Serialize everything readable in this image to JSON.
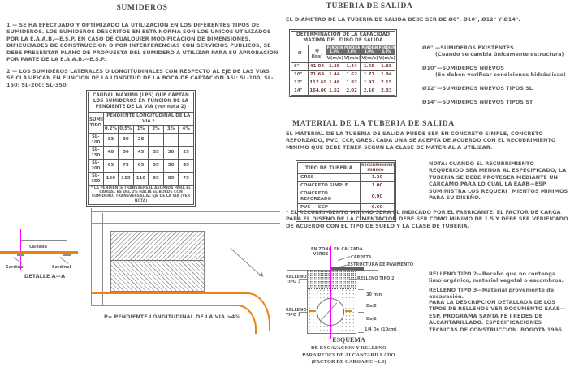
{
  "colors": {
    "accent_orange": "#e8830f",
    "accent_magenta": "#ff00ff",
    "line_gray": "#8a8a8a",
    "text_gray": "#5c5c5c",
    "value_maroon": "#7a4343"
  },
  "sumideros": {
    "title": "SUMIDEROS",
    "para1": "1 — SE HA EFECTUADO Y OPTIMIZADO LA UTILIZACION EN LOS DIFERENTES TIPOS DE SUMIDEROS. LOS SUMIDEROS DESCRITOS EN ESTA NORMA SON LOS UNICOS UTILIZADOS POR LA E.A.A.B.—E.S.P. EN CASO DE CUALQUIER MODIFICACION DE DIMENSIONES, DIFICULTADES DE CONSTRUCCION O POR INTERFERENCIAS CON SERVICIOS PUBLICOS, SE DEBE PRESENTAR PLANO DE PROPUESTA DEL SUMIDERO A UTILIZAR PARA SU APROBACION POR PARTE DE LA E.A.A.B.—E.S.P.",
    "para2": "2 — LOS SUMIDEROS LATERALES O LONGITUDINALES CON RESPECTO AL EJE DE LAS VIAS SE CLASIFICAN EN FUNCION DE LA LONGITUD DE LA BOCA DE CAPTACION ASI: SL-100; SL-150; SL-200; SL-350.",
    "caudal_table": {
      "title": "CAUDAL MAXIMO (LPS) QUE CAPTAN LOS SUMIDEROS EN FUNCION DE LA PENDIENTE DE LA VIA (ver nota 2)",
      "col_tipo": "SUMIDERO TIPO",
      "group_header": "PENDIENTE LONGITUDINAL DE LA VIA *",
      "slopes": [
        "0.2%",
        "0.5%",
        "1%",
        "2%",
        "3%",
        "4%"
      ],
      "rows": [
        [
          "SL-100",
          "33",
          "30",
          "28",
          "—",
          "—",
          "—"
        ],
        [
          "SL-150",
          "48",
          "50",
          "45",
          "35",
          "30",
          "25"
        ],
        [
          "SL-200",
          "65",
          "75",
          "65",
          "55",
          "50",
          "45"
        ],
        [
          "SL-350",
          "130",
          "115",
          "110",
          "95",
          "85",
          "75"
        ]
      ],
      "footnote": "* LA PENDIENTE TRANSVERSAL ASUMIDA PARA EL CAUDAL ES DEL 2% HACIA EL BORDE CON SUMIDERO, TRANSVERSAL AL EJE DE LA VIA (VER NOTA)"
    }
  },
  "tuberia": {
    "title": "TUBERIA DE SALIDA",
    "intro": "EL DIAMETRO DE LA TUBERIA DE SALIDA DEBE SER DE Ø6\", Ø10\", Ø12\" Y Ø14\".",
    "capacity_table": {
      "title": "DETERMINACION DE LA CAPACIDAD MAXIMA DEL TUBO DE SALIDA",
      "col_diameter": "Ø",
      "col_q": "Q (lps)",
      "slope_headers": [
        "PENDIENTE 1.0%",
        "PENDIENTE 2.0%",
        "PENDIENTE 3.0%",
        "PENDIENTE 4.0%"
      ],
      "v_unit": "V(m/s)",
      "rows": [
        [
          "6\"",
          "41.04",
          "1.35",
          "1.44",
          "1.65",
          "1.88"
        ],
        [
          "10\"",
          "71.69",
          "1.44",
          "1.62",
          "1.77",
          "1.94"
        ],
        [
          "12\"",
          "112.69",
          "1.46",
          "1.82",
          "1.97",
          "2.15"
        ],
        [
          "14\"",
          "164.00",
          "1.52",
          "2.02",
          "2.16",
          "2.33"
        ]
      ]
    },
    "diam_notes": [
      {
        "line": "Ø6\"  —SUMIDEROS EXISTENTES",
        "sub": "(Cuando se cambia únicamente estructura)"
      },
      {
        "line": "Ø10\"—SUMIDEROS NUEVOS",
        "sub": "(Se deben verificar condiciones hidráulicas)"
      },
      {
        "line": "Ø12\"—SUMIDEROS NUEVOS TIPOS SL",
        "sub": ""
      },
      {
        "line": "Ø14\"—SUMIDEROS NUEVOS TIPOS ST",
        "sub": ""
      }
    ]
  },
  "material": {
    "title": "MATERIAL DE LA TUBERIA DE SALIDA",
    "para": "EL MATERIAL DE LA TUBERIA DE SALIDA PUEDE SER EN CONCRETO SIMPLE, CONCRETO REFORZADO, PVC, CCP, GRES. CADA UNA SE ACEPTA DE ACUERDO CON EL RECUBRIMIENTO MINIMO QUE DEBE TENER SEGUN LA CLASE DE MATERIAL A UTILIZAR.",
    "tipo_table": {
      "col1": "TIPO DE TUBERIA",
      "col2": "RECUBRIMIENTO MINIMO *",
      "rows": [
        [
          "GRES",
          "1.20"
        ],
        [
          "CONCRETO SIMPLE",
          "1.00"
        ],
        [
          "CONCRETO REFORZADO",
          "0.90"
        ],
        [
          "PVC — CCP",
          "0.60"
        ],
        [
          " ",
          " "
        ]
      ]
    },
    "nota": "NOTA: CUANDO EL RECUBRIMIENTO REQUERIDO SEA MENOR AL ESPECIFICADO, LA TUBERIA SE DEBE PROTEGER MEDIANTE UN CARCAMO PARA LO CUAL LA EAAB—ESP. SUMINISTRA LOS REQUERI_ MIENTOS MINIMOS PARA SU DISEÑO.",
    "footnote": "* EL RECUBRIMIENTO MINIMO SERA EL INDICADO POR EL FABRICANTE. EL FACTOR DE CARGA PARA EL DISEÑO DE LA CIMENTACION DEBE SER COMO MINIMO DE 1.5 Y DEBE SER VERIFICADO DE ACUERDO CON EL TIPO DE SUELO Y LA CLASE DE TUBERIA."
  },
  "esquema": {
    "label_zona_1": "EN ZONA",
    "label_zona_2": "VERDE",
    "label_calzada": "EN CALZADA",
    "label_carpeta": "CARPETA",
    "label_estructura": "ESTRUCTURA DE PAVIMENTO",
    "relleno3_l1": "RELLENO",
    "relleno3_l2": "TIPO 3",
    "relleno2": "RELLENO TIPO 2",
    "relleno1_l1": "RELLENO",
    "relleno1_l2": "TIPO 1",
    "dim_30min": "30 min",
    "dim_de2_a": "De/2",
    "dim_de2_b": "De/2",
    "dim_cuarto": "1/4 De (10cm)",
    "caption": [
      "ESQUEMA",
      "DE EXCAVACION Y RELLENO",
      "PARA REDES DE ALCANTARILLADO",
      "(FACTOR DE CARGA F.C.=1.5)"
    ]
  },
  "relleno_notes": {
    "n1": "RELLENO TIPO 2—Recebo que no contenga limo orgánico, material vegetal o escombros.",
    "n2": "RELLENO TIPO 3—Material proveniente de excavación.",
    "n3": "PARA LA DESCRIPCION DETALLADA DE LOS TIPOS DE RELLENOS VER DOCUMENTO EAAB—ESP. PROGRAMA SANTA FE I REDES DE ALCANTARILLADO. ESPECIFICACIONES TECNICAS DE CONSTRUCCION. BOGOTA 1996."
  },
  "plan": {
    "caption": "P= PENDIENTE LONGITUDINAL DE LA VIA >4%"
  },
  "detalle": {
    "label_calzada": "Calzada",
    "label_sardinel_izq": "Sardinel",
    "label_sardinel_der": "Sardinel",
    "caption": "DETALLE A—A"
  }
}
